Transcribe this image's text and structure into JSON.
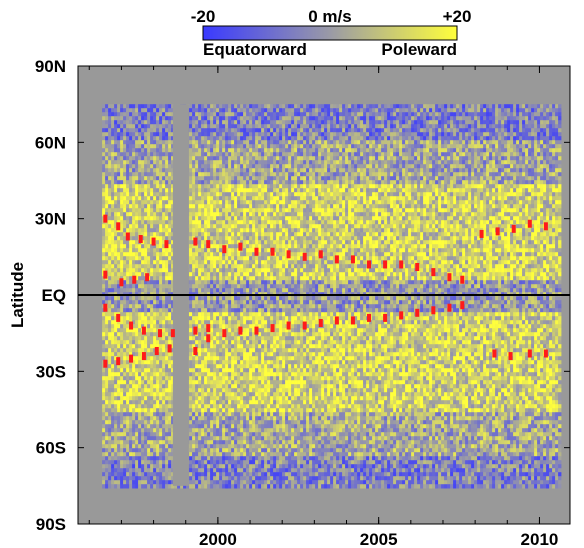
{
  "chart_data": {
    "type": "heatmap",
    "title": "",
    "colorbar": {
      "min_label": "-20",
      "mid_label": "0 m/s",
      "max_label": "+20",
      "left_caption": "Equatorward",
      "right_caption": "Poleward",
      "range": [
        -20,
        20
      ],
      "colors": [
        "#3a3aff",
        "#9a9aa6",
        "#ffff3c"
      ]
    },
    "xlabel": "",
    "ylabel": "Latitude",
    "xlim": [
      1995.65,
      2010.95
    ],
    "ylim": [
      -90,
      90
    ],
    "x_ticks": [
      {
        "value": 2000,
        "label": "2000"
      },
      {
        "value": 2005,
        "label": "2005"
      },
      {
        "value": 2010,
        "label": "2010"
      }
    ],
    "y_ticks": [
      {
        "value": 90,
        "label": "90N"
      },
      {
        "value": 60,
        "label": "60N"
      },
      {
        "value": 30,
        "label": "30N"
      },
      {
        "value": 0,
        "label": "EQ"
      },
      {
        "value": -30,
        "label": "30S"
      },
      {
        "value": -60,
        "label": "60S"
      },
      {
        "value": -90,
        "label": "90S"
      }
    ],
    "data_extent": {
      "x": [
        1996.4,
        2010.6
      ],
      "lat": [
        -75,
        75
      ]
    },
    "data_gap_years": [
      1998.6,
      1999.1
    ],
    "background_color": "#999999",
    "equator_line": true,
    "hemisphere_pattern": "mostly poleward (yellow) flow at mid and low latitudes; patches of equatorward (blue) flow near the poles, strongest at high northern latitudes and near 75S before 2000",
    "red_marker_series": [
      {
        "hemisphere": "north",
        "points": [
          [
            1996.5,
            30
          ],
          [
            1996.9,
            27
          ],
          [
            1997.2,
            23
          ],
          [
            1997.6,
            22
          ],
          [
            1998.0,
            21
          ],
          [
            1998.4,
            20
          ],
          [
            1999.3,
            21
          ],
          [
            1999.7,
            20
          ],
          [
            2000.2,
            18
          ],
          [
            2000.7,
            19
          ],
          [
            2001.2,
            17
          ],
          [
            2001.7,
            17
          ],
          [
            2002.2,
            16
          ],
          [
            2002.7,
            15
          ],
          [
            2003.2,
            16
          ],
          [
            2003.7,
            14
          ],
          [
            2004.2,
            14
          ],
          [
            2004.7,
            12
          ],
          [
            2005.2,
            12
          ],
          [
            2005.7,
            12
          ],
          [
            2006.2,
            11
          ],
          [
            2006.7,
            9
          ],
          [
            2007.2,
            7
          ],
          [
            2007.6,
            6
          ],
          [
            2008.2,
            24
          ],
          [
            2008.7,
            25
          ],
          [
            2009.2,
            26
          ],
          [
            2009.7,
            28
          ],
          [
            2010.2,
            27
          ]
        ]
      },
      {
        "hemisphere": "north",
        "points": [
          [
            1996.5,
            8
          ],
          [
            1997.0,
            5
          ],
          [
            1997.4,
            6
          ],
          [
            1997.8,
            7
          ]
        ]
      },
      {
        "hemisphere": "south",
        "points": [
          [
            1996.5,
            -5
          ],
          [
            1996.9,
            -9
          ],
          [
            1997.3,
            -12
          ],
          [
            1997.7,
            -14
          ],
          [
            1998.2,
            -15
          ],
          [
            1998.6,
            -15
          ],
          [
            1999.3,
            -14
          ],
          [
            1999.7,
            -13
          ]
        ]
      },
      {
        "hemisphere": "south",
        "points": [
          [
            1996.5,
            -27
          ],
          [
            1996.9,
            -26
          ],
          [
            1997.3,
            -25
          ],
          [
            1997.7,
            -24
          ],
          [
            1998.1,
            -22
          ],
          [
            1998.5,
            -21
          ],
          [
            1999.3,
            -22
          ],
          [
            1999.7,
            -17
          ],
          [
            2000.2,
            -15
          ],
          [
            2000.7,
            -14
          ],
          [
            2001.2,
            -14
          ],
          [
            2001.7,
            -13
          ],
          [
            2002.2,
            -12
          ],
          [
            2002.7,
            -12
          ],
          [
            2003.2,
            -11
          ],
          [
            2003.7,
            -10
          ],
          [
            2004.2,
            -10
          ],
          [
            2004.7,
            -9
          ],
          [
            2005.2,
            -9
          ],
          [
            2005.7,
            -8
          ],
          [
            2006.2,
            -7
          ],
          [
            2006.7,
            -6
          ],
          [
            2007.2,
            -5
          ],
          [
            2007.6,
            -4
          ],
          [
            2008.6,
            -23
          ],
          [
            2009.1,
            -24
          ],
          [
            2009.7,
            -23
          ],
          [
            2010.2,
            -23
          ]
        ]
      }
    ]
  }
}
